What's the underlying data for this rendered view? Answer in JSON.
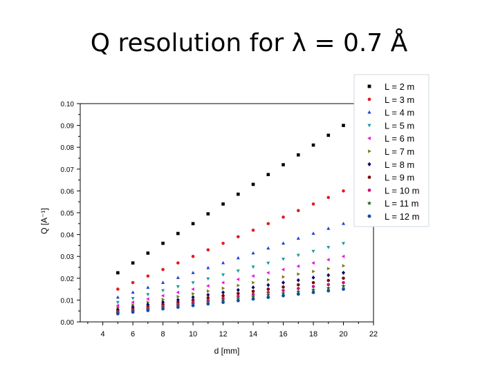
{
  "slide": {
    "title": "Q resolution for λ = 0.7 Å"
  },
  "chart_data": {
    "type": "scatter",
    "xlabel": "d [mm]",
    "ylabel": "Q [A⁻¹]",
    "xlim": [
      2.5,
      22
    ],
    "ylim": [
      0,
      0.1
    ],
    "xticks": [
      "4",
      "6",
      "8",
      "10",
      "12",
      "14",
      "16",
      "18",
      "20",
      "22"
    ],
    "yticks": [
      "0.00",
      "0.01",
      "0.02",
      "0.03",
      "0.04",
      "0.05",
      "0.06",
      "0.07",
      "0.08",
      "0.09",
      "0.10"
    ],
    "grid": false,
    "legend_position": "top-right",
    "x": [
      5,
      6,
      7,
      8,
      9,
      10,
      11,
      12,
      13,
      14,
      15,
      16,
      17,
      18,
      19,
      20
    ],
    "series": [
      {
        "name": "L = 2 m",
        "marker": "square",
        "color": "#000000",
        "values": [
          0.0225,
          0.027,
          0.0315,
          0.036,
          0.0405,
          0.045,
          0.0495,
          0.054,
          0.0585,
          0.063,
          0.0675,
          0.072,
          0.0765,
          0.081,
          0.0855,
          0.09
        ]
      },
      {
        "name": "L = 3 m",
        "marker": "circle",
        "color": "#e31a1c",
        "values": [
          0.015,
          0.018,
          0.021,
          0.024,
          0.027,
          0.03,
          0.033,
          0.036,
          0.039,
          0.042,
          0.045,
          0.048,
          0.051,
          0.054,
          0.057,
          0.06
        ]
      },
      {
        "name": "L = 4 m",
        "marker": "triangle-up",
        "color": "#1f3fd0",
        "values": [
          0.01125,
          0.0135,
          0.01575,
          0.018,
          0.02025,
          0.0225,
          0.02475,
          0.027,
          0.02925,
          0.0315,
          0.03375,
          0.036,
          0.03825,
          0.0405,
          0.04275,
          0.045
        ]
      },
      {
        "name": "L = 5 m",
        "marker": "triangle-down",
        "color": "#1a9a9a",
        "values": [
          0.009,
          0.0108,
          0.0126,
          0.0144,
          0.0162,
          0.018,
          0.0198,
          0.0216,
          0.0234,
          0.0252,
          0.027,
          0.0288,
          0.0306,
          0.0324,
          0.0342,
          0.036
        ]
      },
      {
        "name": "L = 6 m",
        "marker": "triangle-left",
        "color": "#e01ad8",
        "values": [
          0.0075,
          0.009,
          0.0105,
          0.012,
          0.0135,
          0.015,
          0.0165,
          0.018,
          0.0195,
          0.021,
          0.0225,
          0.024,
          0.0255,
          0.027,
          0.0285,
          0.03
        ]
      },
      {
        "name": "L = 7 m",
        "marker": "triangle-right",
        "color": "#7a7a1a",
        "values": [
          0.0065,
          0.0078,
          0.009,
          0.0103,
          0.0116,
          0.0129,
          0.0141,
          0.0154,
          0.0167,
          0.018,
          0.0193,
          0.0206,
          0.0219,
          0.0231,
          0.0244,
          0.0257
        ]
      },
      {
        "name": "L = 8 m",
        "marker": "diamond",
        "color": "#0a0a6a",
        "values": [
          0.0056,
          0.0068,
          0.0079,
          0.009,
          0.0101,
          0.0113,
          0.0124,
          0.0135,
          0.0146,
          0.0158,
          0.0169,
          0.018,
          0.0191,
          0.0203,
          0.0214,
          0.0225
        ]
      },
      {
        "name": "L = 9 m",
        "marker": "circle",
        "color": "#7a0a0a",
        "values": [
          0.005,
          0.006,
          0.007,
          0.008,
          0.009,
          0.01,
          0.011,
          0.012,
          0.013,
          0.014,
          0.015,
          0.016,
          0.017,
          0.018,
          0.019,
          0.02
        ]
      },
      {
        "name": "L = 10 m",
        "marker": "circle",
        "color": "#c8147a",
        "values": [
          0.0045,
          0.0054,
          0.0063,
          0.0072,
          0.0081,
          0.009,
          0.0099,
          0.0108,
          0.0117,
          0.0126,
          0.0135,
          0.0144,
          0.0153,
          0.0162,
          0.0171,
          0.018
        ]
      },
      {
        "name": "L = 11 m",
        "marker": "star",
        "color": "#1a6a1a",
        "values": [
          0.0041,
          0.0049,
          0.0057,
          0.0065,
          0.0074,
          0.0082,
          0.009,
          0.0098,
          0.0106,
          0.0115,
          0.0123,
          0.0131,
          0.0139,
          0.0147,
          0.0155,
          0.0164
        ]
      },
      {
        "name": "L = 12 m",
        "marker": "hexagon",
        "color": "#1a4aa8",
        "values": [
          0.00375,
          0.0045,
          0.00525,
          0.006,
          0.00675,
          0.0075,
          0.00825,
          0.009,
          0.00975,
          0.0105,
          0.01125,
          0.012,
          0.01275,
          0.0135,
          0.01425,
          0.015
        ]
      }
    ]
  }
}
